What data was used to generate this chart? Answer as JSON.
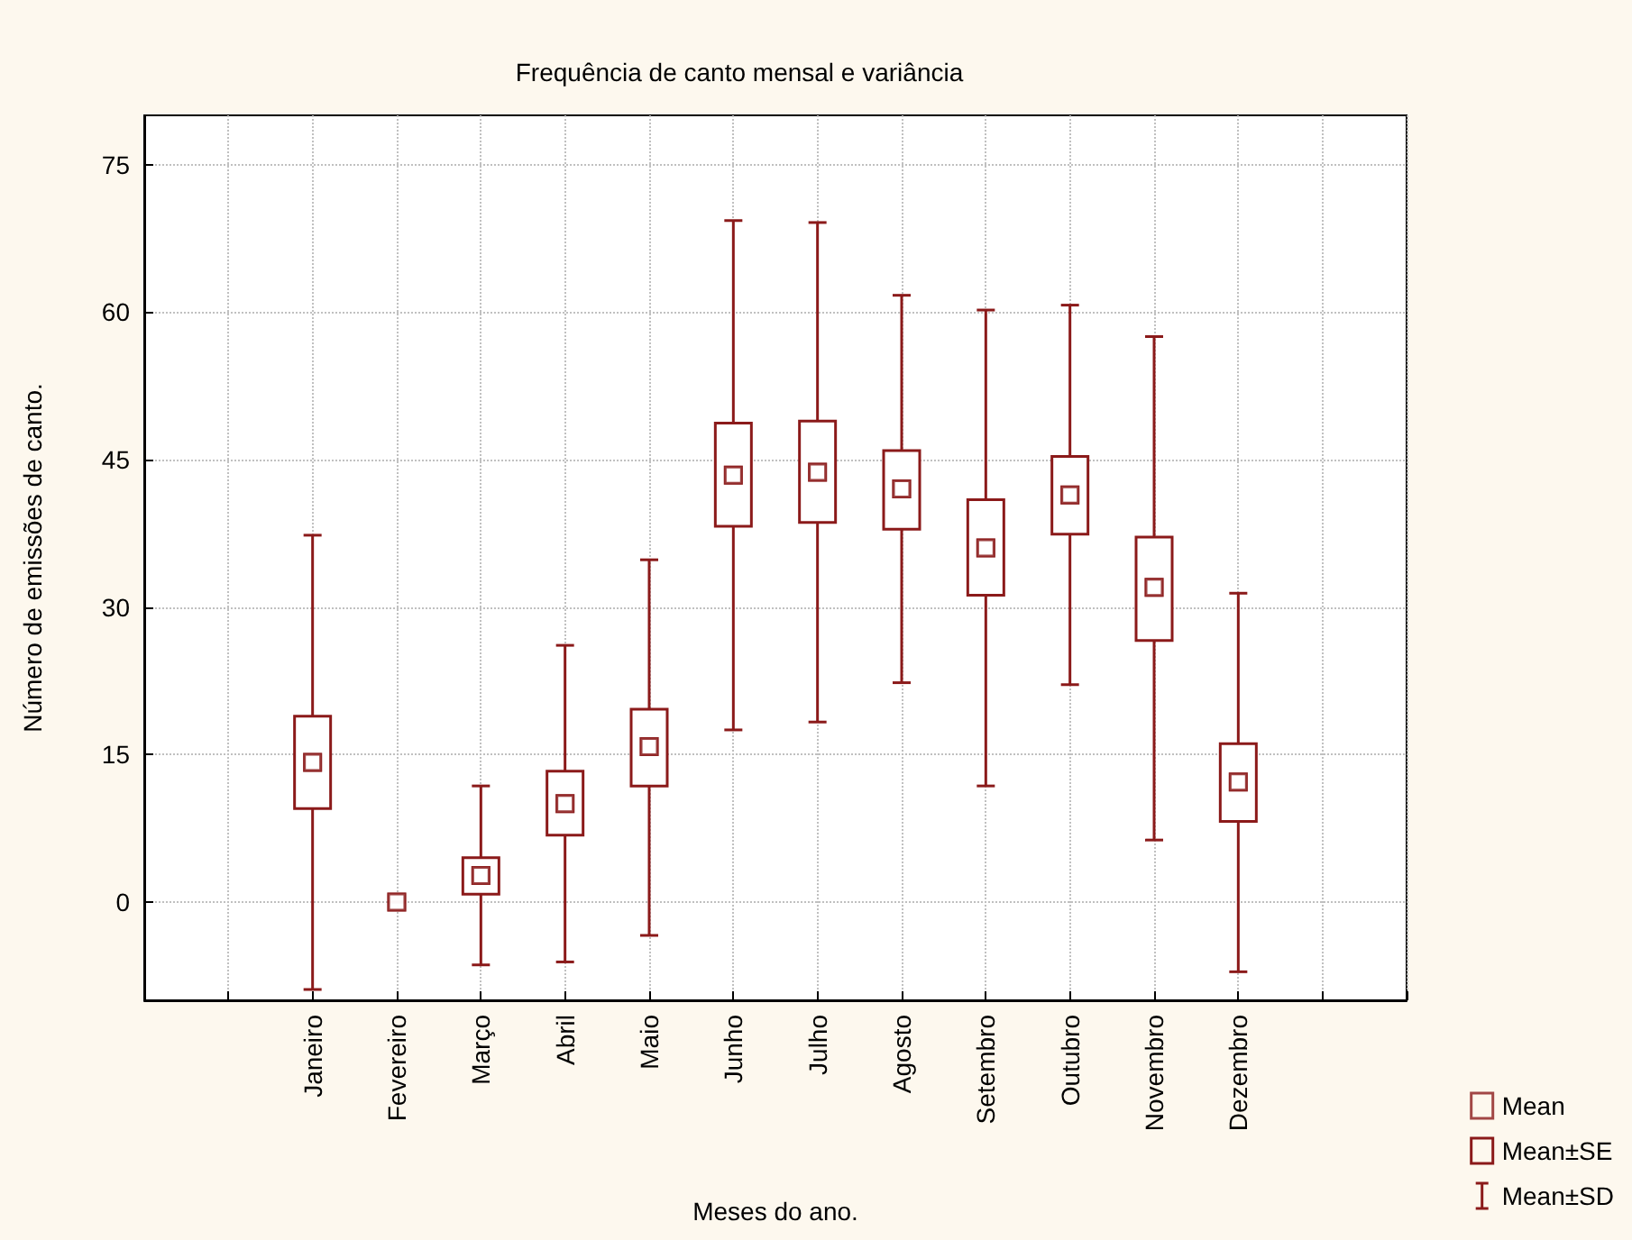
{
  "chart_data": {
    "type": "box",
    "title": "Frequência de canto mensal e variância",
    "xlabel": "Meses do ano.",
    "ylabel": "Número de emissões de canto.",
    "categories": [
      null,
      null,
      "Janeiro",
      "Fevereiro",
      "Março",
      "Abril",
      "Maio",
      "Junho",
      "Julho",
      "Agosto",
      "Setembro",
      "Outubro",
      "Novembro",
      "Dezembro",
      null,
      null
    ],
    "series": [
      {
        "name": "Mean",
        "type": "scatter",
        "marker": "square",
        "color": "#8b1a1a",
        "values": [
          null,
          null,
          14.2,
          0,
          2.7,
          10.0,
          15.8,
          43.4,
          43.7,
          42.0,
          36.0,
          41.4,
          32.0,
          12.2,
          null,
          null
        ]
      },
      {
        "name": "Mean±SE",
        "type": "bar",
        "color": "#8b1a1a",
        "base": [
          null,
          null,
          9.5,
          0,
          0.8,
          6.8,
          11.8,
          38.2,
          38.6,
          37.9,
          31.2,
          37.4,
          26.6,
          8.2,
          null,
          null
        ],
        "values": [
          null,
          null,
          9.4,
          0,
          3.7,
          6.5,
          7.8,
          10.5,
          10.3,
          8.0,
          9.7,
          7.9,
          10.5,
          7.9,
          null,
          null
        ]
      },
      {
        "name": "Mean±SD",
        "type": "scatter",
        "marker": "square",
        "color": "#8b1a1a",
        "values": [
          null,
          null,
          14.2,
          0,
          2.7,
          10.0,
          15.8,
          43.4,
          43.7,
          42.0,
          36.0,
          41.4,
          32.0,
          12.2,
          null,
          null
        ],
        "errors": [
          null,
          null,
          [
            -8.9,
            37.3
          ],
          [
            0,
            0
          ],
          [
            -6.4,
            11.8
          ],
          [
            -6.1,
            26.1
          ],
          [
            -3.4,
            34.8
          ],
          [
            17.5,
            69.3
          ],
          [
            18.3,
            69.1
          ],
          [
            22.3,
            61.7
          ],
          [
            11.8,
            60.2
          ],
          [
            22.1,
            60.7
          ],
          [
            6.3,
            57.5
          ],
          [
            -7.1,
            31.4
          ],
          null,
          null
        ]
      }
    ],
    "ylim": [
      -10,
      80
    ],
    "yticks": [
      0,
      15,
      30,
      45,
      60,
      75
    ],
    "grid": true,
    "legend": "bottom right"
  }
}
